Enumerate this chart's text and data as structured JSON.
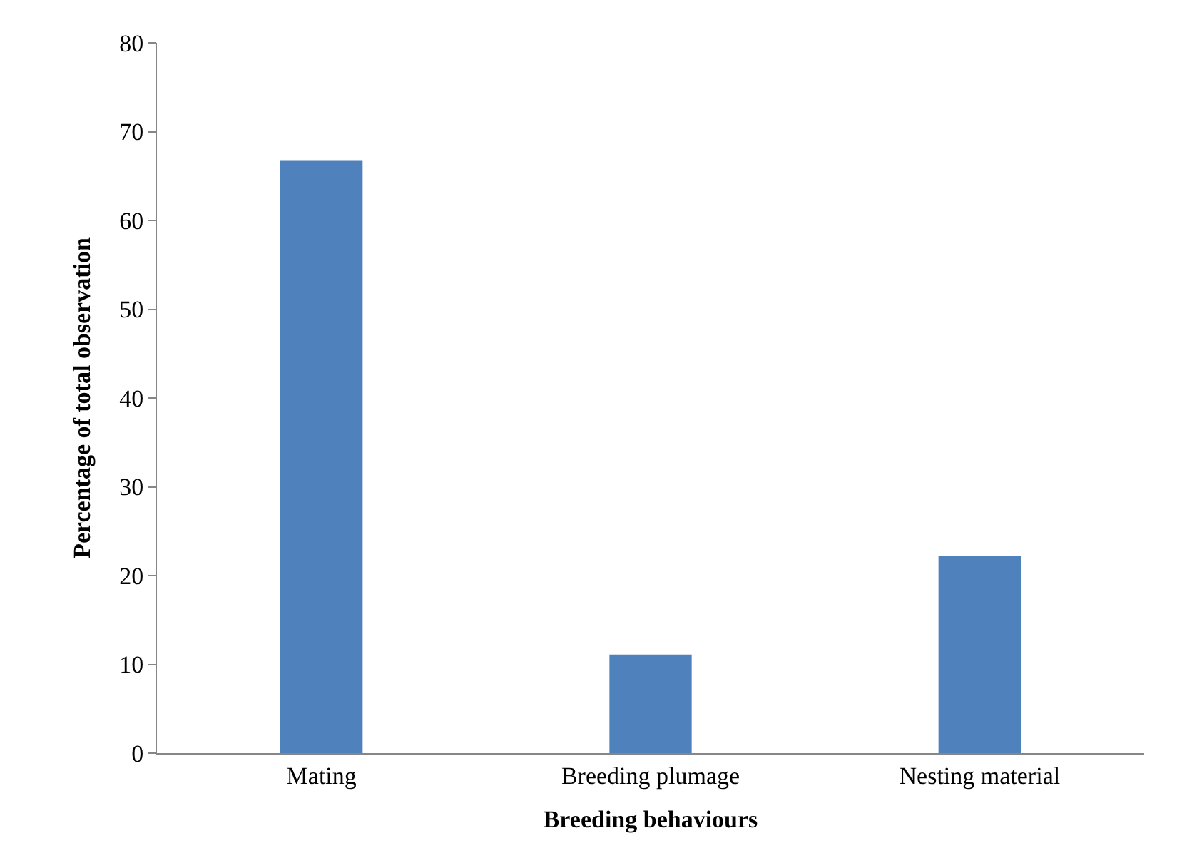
{
  "chart_data": {
    "type": "bar",
    "xlabel": "Breeding behaviours",
    "ylabel": "Percentage of total observation",
    "categories": [
      "Mating",
      "Breeding plumage",
      "Nesting material"
    ],
    "values": [
      66.7,
      11.1,
      22.2
    ],
    "color": "#4f81bd",
    "ylim": [
      0,
      80
    ],
    "yticks": [
      0,
      10,
      20,
      30,
      40,
      50,
      60,
      70,
      80
    ]
  }
}
